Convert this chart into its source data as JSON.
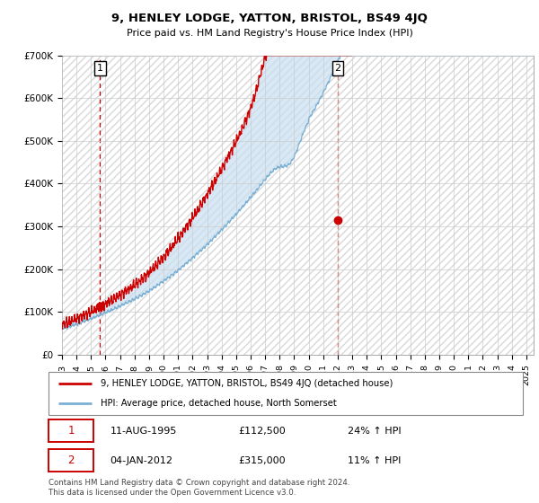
{
  "title": "9, HENLEY LODGE, YATTON, BRISTOL, BS49 4JQ",
  "subtitle": "Price paid vs. HM Land Registry's House Price Index (HPI)",
  "ytick_labels": [
    "£0",
    "£100K",
    "£200K",
    "£300K",
    "£400K",
    "£500K",
    "£600K",
    "£700K"
  ],
  "yticks": [
    0,
    100000,
    200000,
    300000,
    400000,
    500000,
    600000,
    700000
  ],
  "ylim": [
    0,
    700000
  ],
  "xlim_start": 1993.0,
  "xlim_end": 2025.5,
  "xtick_years": [
    1993,
    1994,
    1995,
    1996,
    1997,
    1998,
    1999,
    2000,
    2001,
    2002,
    2003,
    2004,
    2005,
    2006,
    2007,
    2008,
    2009,
    2010,
    2011,
    2012,
    2013,
    2014,
    2015,
    2016,
    2017,
    2018,
    2019,
    2020,
    2021,
    2022,
    2023,
    2024,
    2025
  ],
  "legend_line1": "9, HENLEY LODGE, YATTON, BRISTOL, BS49 4JQ (detached house)",
  "legend_line2": "HPI: Average price, detached house, North Somerset",
  "annotation1_label": "1",
  "annotation1_date": "11-AUG-1995",
  "annotation1_price": "£112,500",
  "annotation1_hpi": "24% ↑ HPI",
  "annotation2_label": "2",
  "annotation2_date": "04-JAN-2012",
  "annotation2_price": "£315,000",
  "annotation2_hpi": "11% ↑ HPI",
  "footnote": "Contains HM Land Registry data © Crown copyright and database right 2024.\nThis data is licensed under the Open Government Licence v3.0.",
  "line_color_red": "#cc0000",
  "line_color_blue": "#7ab0d4",
  "fill_color_blue": "#c8dff0",
  "hatch_color": "#d8d8d8",
  "grid_color": "#cccccc",
  "sale1_x": 1995.62,
  "sale1_y": 112500,
  "sale2_x": 2012.01,
  "sale2_y": 315000
}
